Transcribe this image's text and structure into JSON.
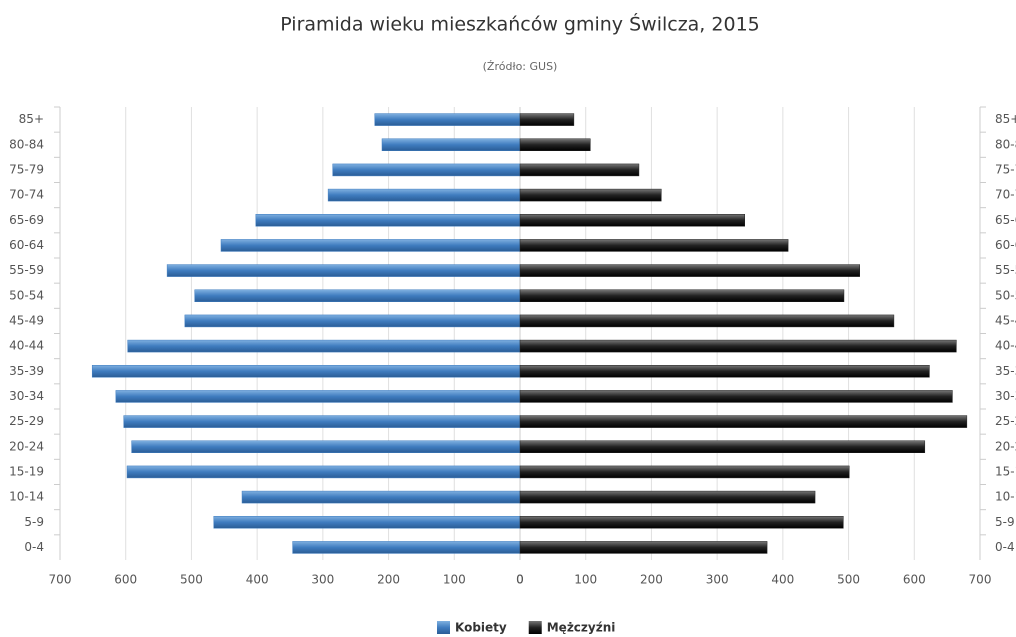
{
  "chart_data": {
    "type": "pyramid",
    "title": "Piramida wieku mieszkańców gminy Świlcza, 2015",
    "subtitle": "(Źródło: GUS)",
    "categories": [
      "85+",
      "80-84",
      "75-79",
      "70-74",
      "65-69",
      "60-64",
      "55-59",
      "50-54",
      "45-49",
      "40-44",
      "35-39",
      "30-34",
      "25-29",
      "20-24",
      "15-19",
      "10-14",
      "5-9",
      "0-4"
    ],
    "series": [
      {
        "name": "Kobiety",
        "color": "#3f7cbf",
        "values": [
          221,
          210,
          285,
          292,
          402,
          455,
          537,
          495,
          510,
          597,
          651,
          615,
          603,
          591,
          598,
          423,
          466,
          346
        ]
      },
      {
        "name": "Mężczyźni",
        "color": "#222222",
        "values": [
          82,
          107,
          181,
          215,
          342,
          408,
          517,
          493,
          569,
          664,
          623,
          658,
          680,
          616,
          501,
          449,
          492,
          376
        ]
      }
    ],
    "xlim": [
      0,
      700
    ],
    "xticks": [
      0,
      100,
      200,
      300,
      400,
      500,
      600,
      700
    ],
    "grid": true
  }
}
